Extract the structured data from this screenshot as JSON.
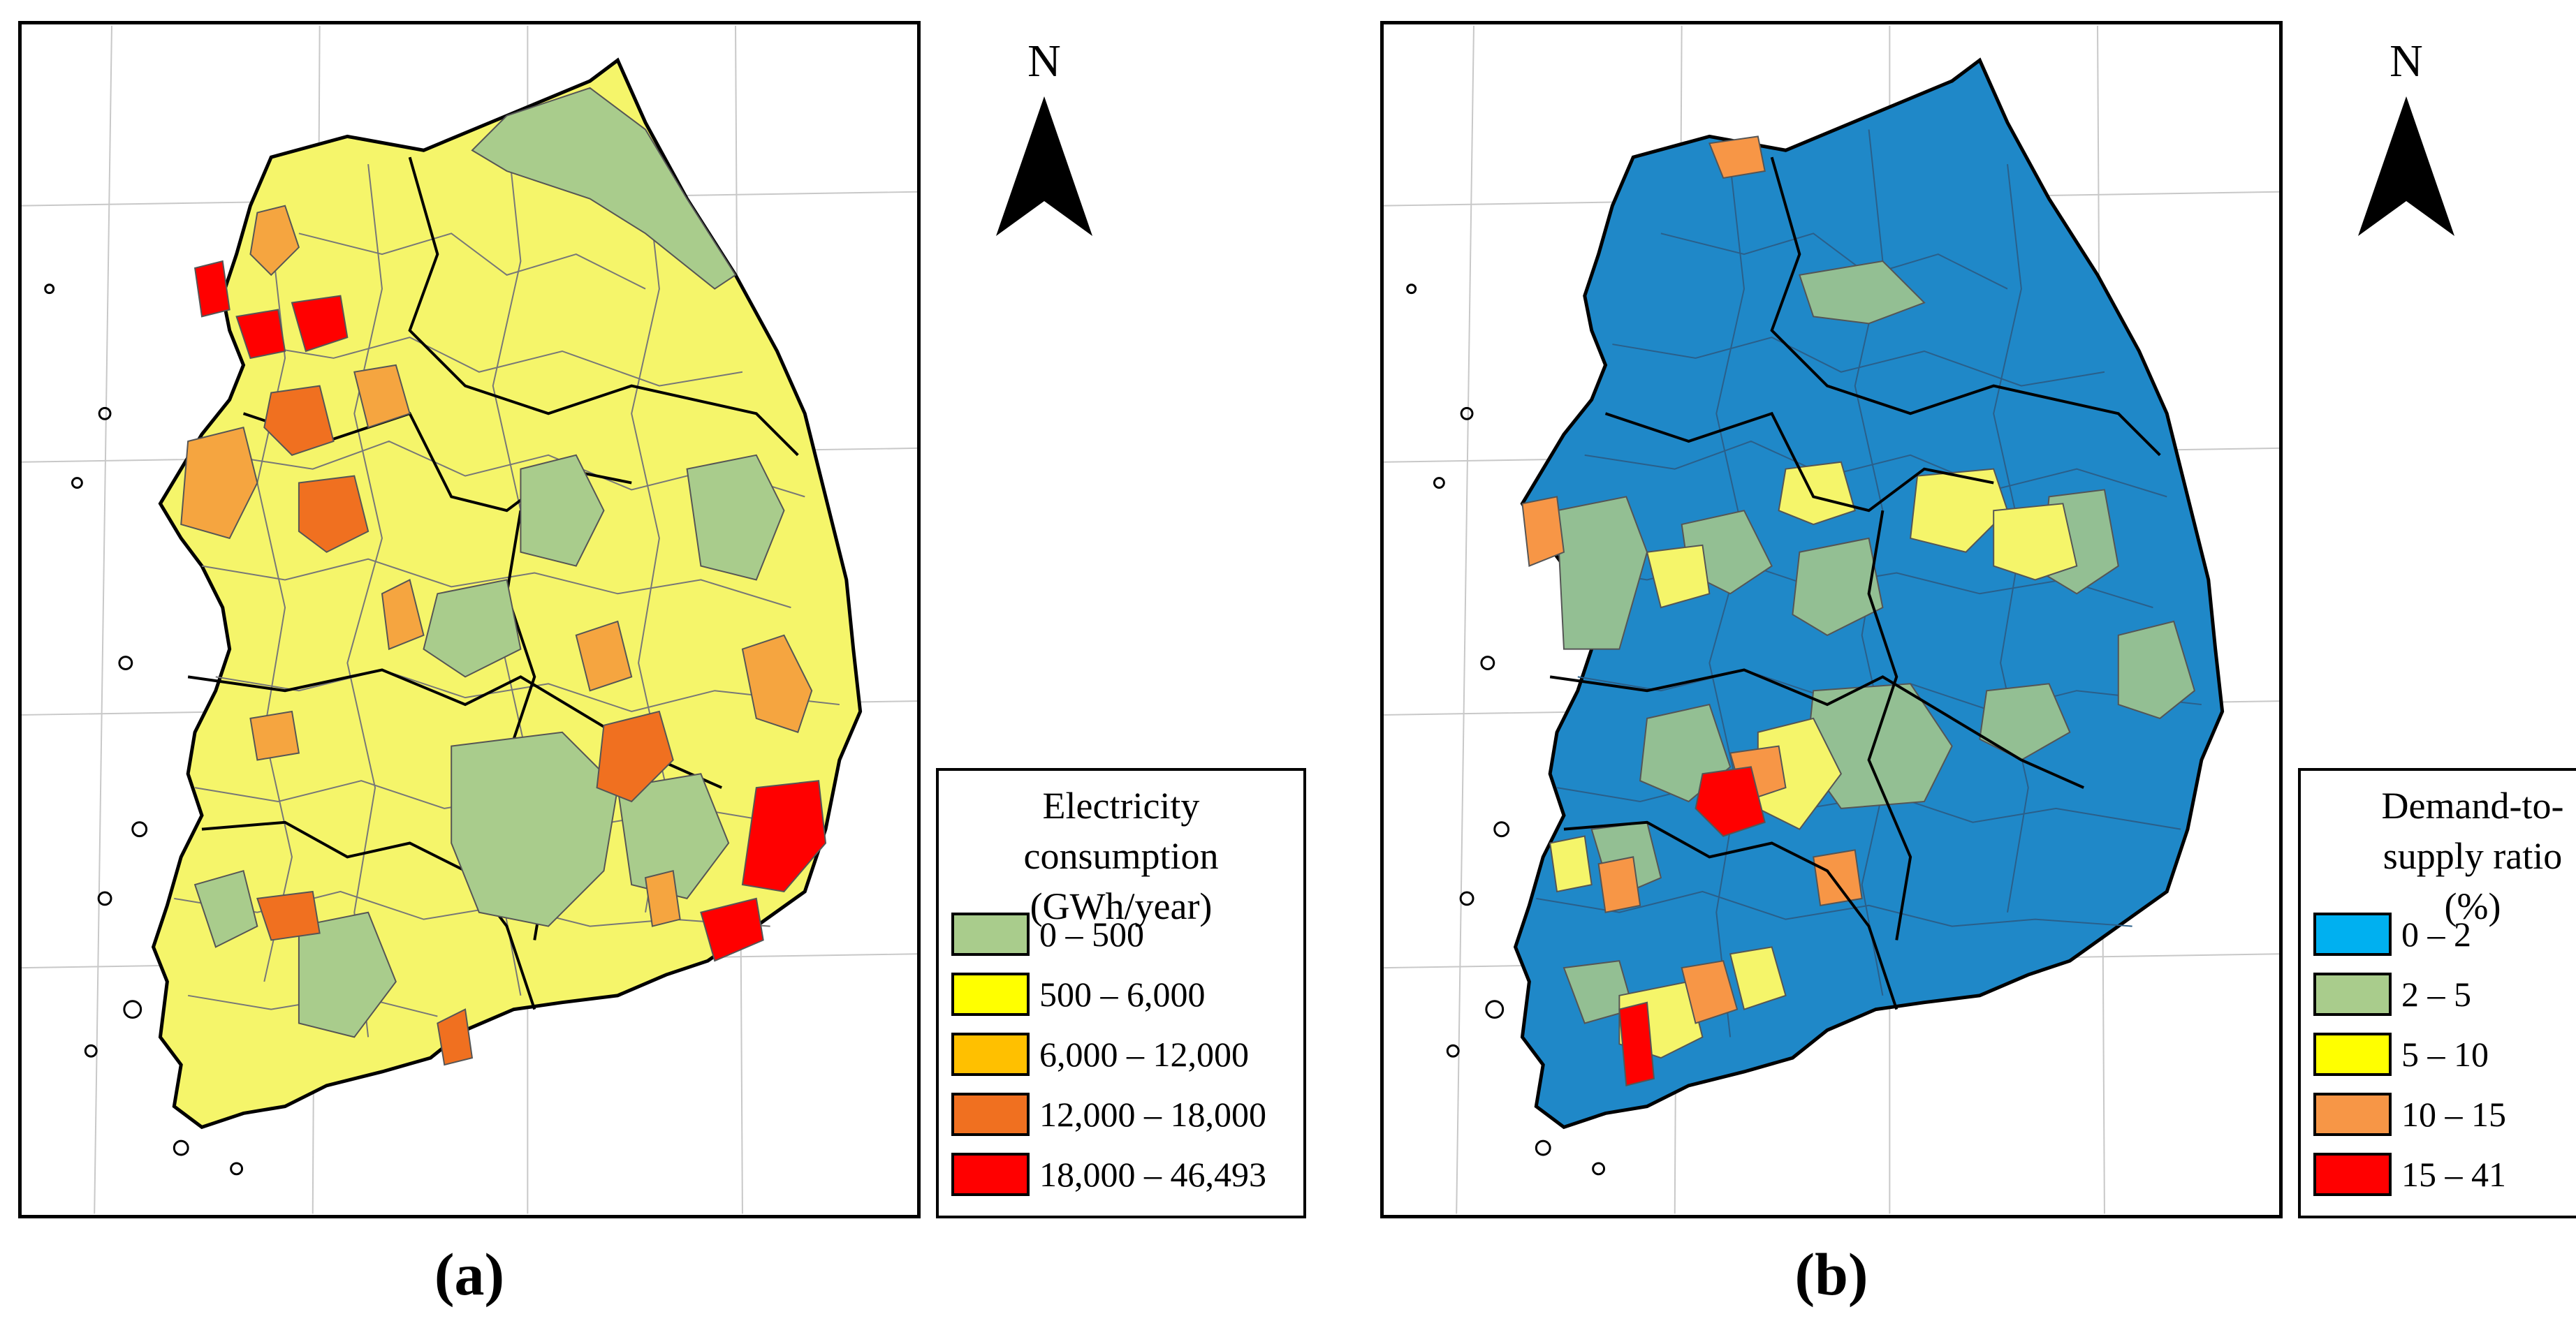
{
  "panels": [
    {
      "id": "a",
      "label": "(a)",
      "north_label": "N",
      "legend": {
        "title_lines": [
          "Electricity",
          "consumption",
          "(GWh/year)"
        ],
        "items": [
          {
            "label": "0 – 500",
            "color": "#a9cc8c"
          },
          {
            "label": "500 – 6,000",
            "color": "#ffff00"
          },
          {
            "label": "6,000 – 12,000",
            "color": "#ffc000"
          },
          {
            "label": "12,000 – 18,000",
            "color": "#f07020"
          },
          {
            "label": "18,000 – 46,493",
            "color": "#ff0000"
          }
        ]
      },
      "map": {
        "base_color": "#f5f56a",
        "highlight_colors": [
          "#a9cc8c",
          "#f5a540",
          "#f07020",
          "#ff0000"
        ]
      }
    },
    {
      "id": "b",
      "label": "(b)",
      "north_label": "N",
      "legend": {
        "title_lines": [
          "Demand-to-",
          "supply ratio",
          "(%)"
        ],
        "items": [
          {
            "label": "0 – 2",
            "color": "#00b0f0"
          },
          {
            "label": "2 – 5",
            "color": "#a9cc8c"
          },
          {
            "label": "5 – 10",
            "color": "#ffff00"
          },
          {
            "label": "10 – 15",
            "color": "#f79646"
          },
          {
            "label": "15 – 41",
            "color": "#ff0000"
          }
        ]
      },
      "map": {
        "base_color": "#1f88c8",
        "highlight_colors": [
          "#93bf93",
          "#f5f56a",
          "#f79646",
          "#ff0000"
        ]
      }
    }
  ]
}
